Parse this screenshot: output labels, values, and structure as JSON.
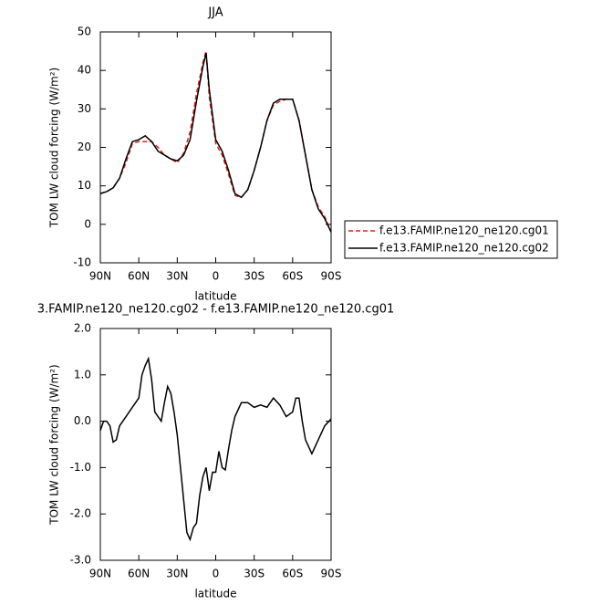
{
  "chart_data": [
    {
      "type": "line",
      "title": "JJA",
      "xlabel": "latitude",
      "ylabel": "TOM LW cloud forcing (W/m²)",
      "x": [
        90,
        85,
        80,
        75,
        70,
        65,
        60,
        55,
        50,
        45,
        40,
        35,
        30,
        25,
        20,
        15,
        10,
        7.5,
        5,
        0,
        -5,
        -10,
        -15,
        -20,
        -25,
        -30,
        -35,
        -40,
        -45,
        -50,
        -55,
        -60,
        -65,
        -70,
        -75,
        -80,
        -85,
        -90
      ],
      "series": [
        {
          "name": "f.e13.FAMIP.ne120_ne120.cg01",
          "color": "#e0201b",
          "linestyle": "dashed",
          "values": [
            8,
            8.5,
            9.5,
            12,
            16,
            21,
            21.5,
            21.5,
            21.5,
            20,
            18,
            17,
            16,
            18.5,
            24,
            34,
            42,
            45,
            33,
            21,
            18,
            13,
            7.5,
            7,
            9,
            14,
            20,
            27,
            31,
            32,
            32.5,
            32.5,
            27,
            18,
            9,
            4.5,
            2,
            -2
          ]
        },
        {
          "name": "f.e13.FAMIP.ne120_ne120.cg02",
          "color": "#000000",
          "linestyle": "solid",
          "values": [
            8,
            8.5,
            9.5,
            12,
            17,
            21.5,
            22,
            23,
            21.5,
            19,
            18,
            17,
            16.5,
            18,
            22,
            32,
            41,
            44.5,
            35,
            22,
            19,
            14,
            8,
            7,
            9,
            14,
            20,
            27,
            31.5,
            32.5,
            32.5,
            32.5,
            27,
            18,
            9,
            4,
            1.5,
            -2
          ]
        }
      ],
      "xlim": [
        90,
        -90
      ],
      "xticks": [
        {
          "value": 90,
          "label": "90N"
        },
        {
          "value": 60,
          "label": "60N"
        },
        {
          "value": 30,
          "label": "30N"
        },
        0,
        {
          "value": -30,
          "label": "30S"
        },
        {
          "value": -60,
          "label": "60S"
        },
        {
          "value": -90,
          "label": "90S"
        }
      ],
      "ylim": [
        -10,
        50
      ],
      "yticks": [
        -10,
        0,
        10,
        20,
        30,
        40,
        50
      ],
      "legend": "right"
    },
    {
      "type": "line",
      "title": "3.FAMIP.ne120_ne120.cg02 - f.e13.FAMIP.ne120_ne120.cg01",
      "xlabel": "latitude",
      "ylabel": "TOM LW cloud forcing (W/m²)",
      "x": [
        90,
        87.5,
        85,
        82.5,
        80,
        77.5,
        75,
        70,
        65,
        60,
        57.5,
        55,
        52.5,
        50,
        47.5,
        45,
        42.5,
        40,
        37.5,
        35,
        32.5,
        30,
        27.5,
        25,
        22.5,
        20,
        17.5,
        15,
        12.5,
        10,
        7.5,
        5,
        2.5,
        0,
        -2.5,
        -5,
        -7.5,
        -10,
        -12.5,
        -15,
        -20,
        -25,
        -30,
        -35,
        -40,
        -45,
        -50,
        -55,
        -60,
        -62.5,
        -65,
        -67.5,
        -70,
        -75,
        -80,
        -85,
        -90
      ],
      "series": [
        {
          "color": "#000000",
          "linestyle": "solid",
          "values": [
            -0.2,
            0,
            0,
            -0.1,
            -0.45,
            -0.4,
            -0.1,
            0.1,
            0.3,
            0.5,
            1.0,
            1.2,
            1.35,
            0.9,
            0.2,
            0.1,
            0.0,
            0.4,
            0.75,
            0.6,
            0.2,
            -0.3,
            -1.0,
            -1.7,
            -2.4,
            -2.55,
            -2.3,
            -2.2,
            -1.6,
            -1.2,
            -1.0,
            -1.5,
            -1.1,
            -1.1,
            -0.65,
            -1.0,
            -1.05,
            -0.6,
            -0.2,
            0.1,
            0.4,
            0.4,
            0.3,
            0.35,
            0.3,
            0.5,
            0.35,
            0.1,
            0.2,
            0.5,
            0.5,
            0.0,
            -0.4,
            -0.7,
            -0.4,
            -0.1,
            0.05
          ]
        }
      ],
      "xlim": [
        90,
        -90
      ],
      "xticks": [
        {
          "value": 90,
          "label": "90N"
        },
        {
          "value": 60,
          "label": "60N"
        },
        {
          "value": 30,
          "label": "30N"
        },
        0,
        {
          "value": -30,
          "label": "30S"
        },
        {
          "value": -60,
          "label": "60S"
        },
        {
          "value": -90,
          "label": "90S"
        }
      ],
      "ylim": [
        -3,
        2
      ],
      "yticks": [
        {
          "value": -3,
          "label": "-3.0"
        },
        {
          "value": -2,
          "label": "-2.0"
        },
        {
          "value": -1,
          "label": "-1.0"
        },
        {
          "value": 0,
          "label": "0.0"
        },
        {
          "value": 1,
          "label": "1.0"
        },
        {
          "value": 2,
          "label": "2.0"
        }
      ]
    }
  ]
}
